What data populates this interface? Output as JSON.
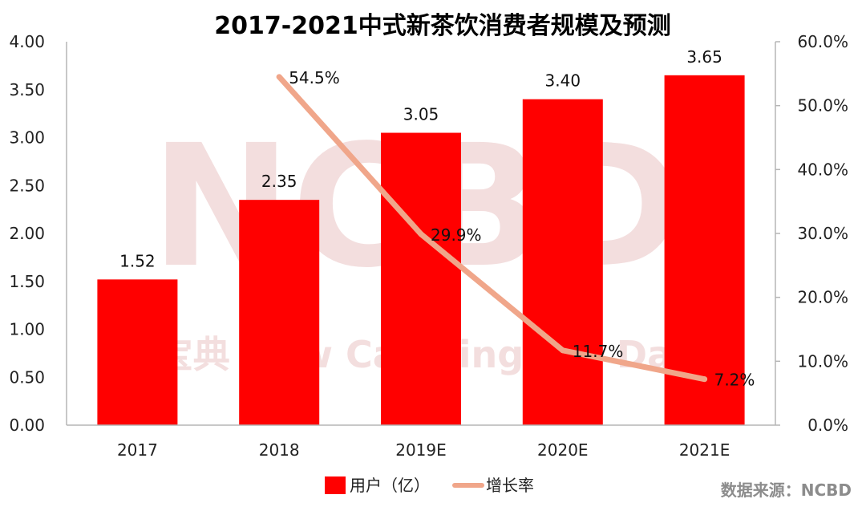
{
  "chart_data": {
    "type": "bar",
    "title": "2017-2021中式新茶饮消费者规模及预测",
    "categories": [
      "2017",
      "2018",
      "2019E",
      "2020E",
      "2021E"
    ],
    "series": [
      {
        "name": "用户（亿）",
        "kind": "bar",
        "axis": "left",
        "color": "#ff0000",
        "values": [
          1.52,
          2.35,
          3.05,
          3.4,
          3.65
        ],
        "labels": [
          "1.52",
          "2.35",
          "3.05",
          "3.40",
          "3.65"
        ]
      },
      {
        "name": "增长率",
        "kind": "line",
        "axis": "right",
        "color": "#f0a68a",
        "values": [
          null,
          54.5,
          29.9,
          11.7,
          7.2
        ],
        "labels": [
          "",
          "54.5%",
          "29.9%",
          "11.7%",
          "7.2%"
        ]
      }
    ],
    "y_left": {
      "min": 0,
      "max": 4,
      "ticks": [
        0,
        0.5,
        1,
        1.5,
        2,
        2.5,
        3,
        3.5,
        4
      ],
      "tick_labels": [
        "0.00",
        "0.50",
        "1.00",
        "1.50",
        "2.00",
        "2.50",
        "3.00",
        "3.50",
        "4.00"
      ]
    },
    "y_right": {
      "min": 0,
      "max": 60,
      "ticks": [
        0,
        10,
        20,
        30,
        40,
        50,
        60
      ],
      "tick_labels": [
        "0.0%",
        "10.0%",
        "20.0%",
        "30.0%",
        "40.0%",
        "50.0%",
        "60.0%"
      ]
    },
    "legend_position": "bottom-center",
    "grid": false
  },
  "watermark": {
    "main": "NCBD",
    "sub": "餐宝典  New Catering Big Data"
  },
  "source": "数据来源：NCBD"
}
